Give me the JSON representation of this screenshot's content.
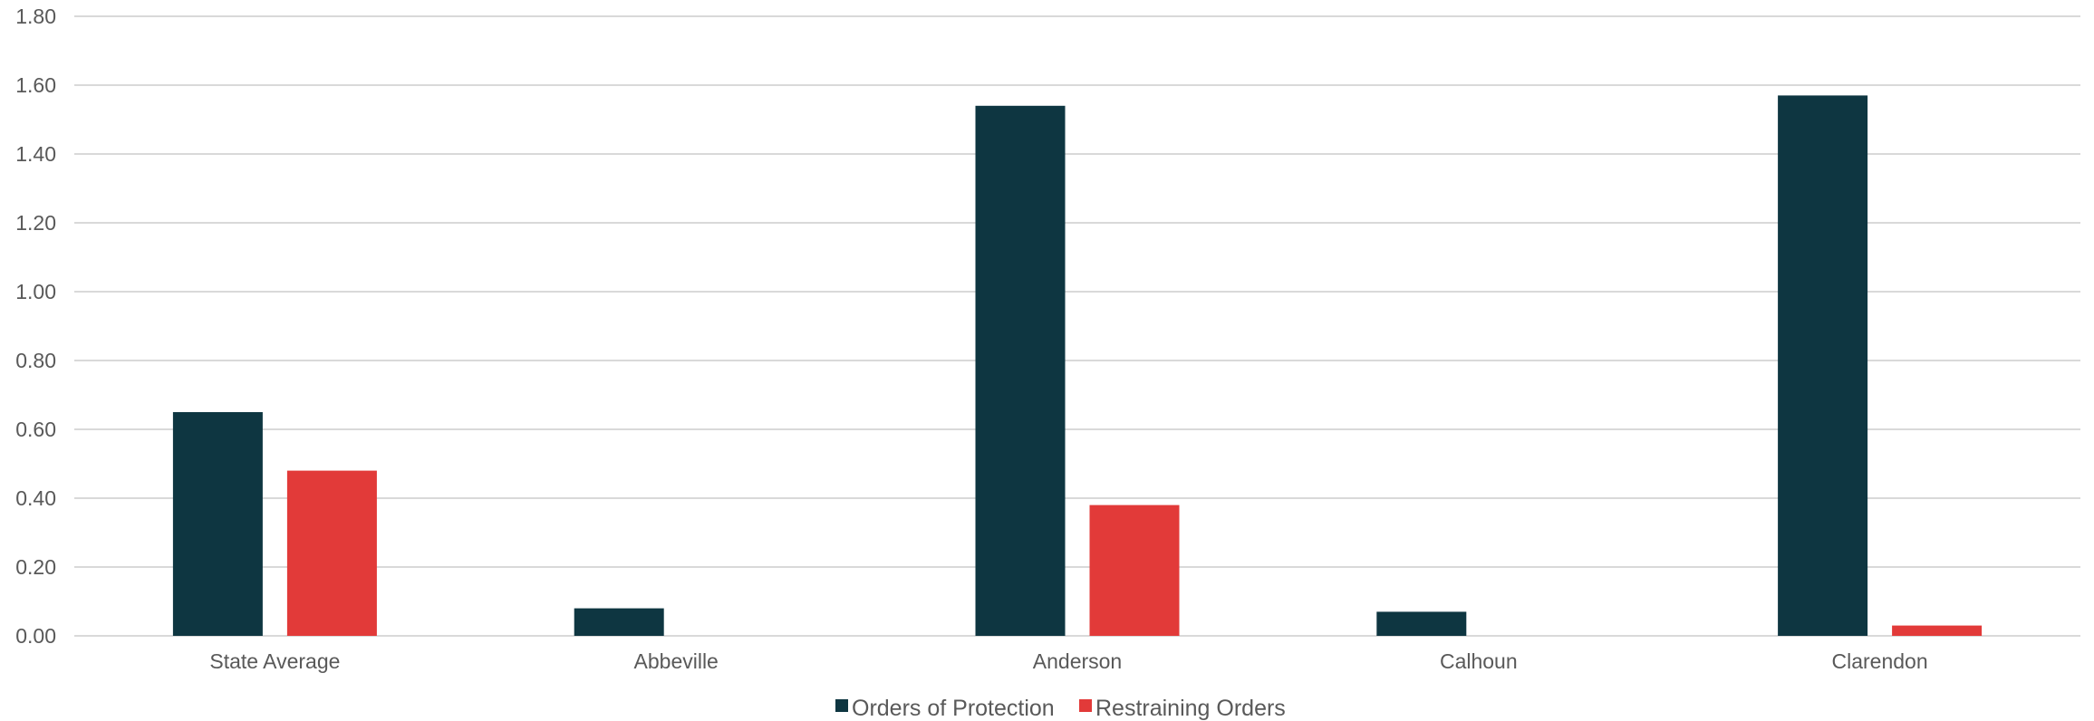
{
  "chart_data": {
    "type": "bar",
    "title": "",
    "xlabel": "",
    "ylabel": "",
    "categories": [
      "State Average",
      "Abbeville",
      "Anderson",
      "Calhoun",
      "Clarendon"
    ],
    "series": [
      {
        "name": "Orders of Protection",
        "color": "#0e3641",
        "values": [
          0.65,
          0.08,
          1.54,
          0.07,
          1.57
        ]
      },
      {
        "name": "Restraining Orders",
        "color": "#e23a39",
        "values": [
          0.48,
          0.0,
          0.38,
          0.0,
          0.03
        ]
      }
    ],
    "ylim": [
      0,
      1.8
    ],
    "yticks": [
      "0.00",
      "0.20",
      "0.40",
      "0.60",
      "0.80",
      "1.00",
      "1.20",
      "1.40",
      "1.60",
      "1.80"
    ],
    "grid": true,
    "legend_position": "bottom"
  }
}
